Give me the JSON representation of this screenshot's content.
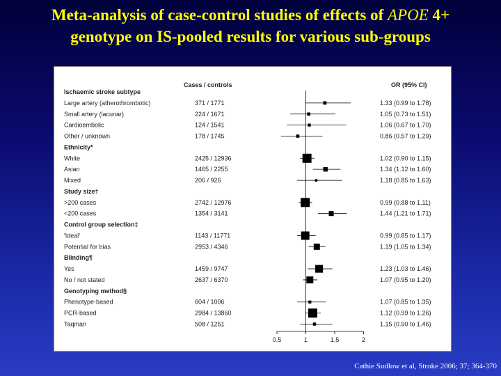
{
  "slide": {
    "title_line1_prefix": "Meta-analysis of case-control studies of effects of ",
    "title_line1_italic": "APOE",
    "title_line1_suffix": " 4+",
    "title_line2": "genotype on IS-pooled results for various sub-groups",
    "citation": "Cathie Sudlow et al, Stroke 2006; 37; 364-370"
  },
  "colors": {
    "title": "#ffff00",
    "marker": "#000000",
    "background_top": "#00003a",
    "background_bottom": "#2a3cc4"
  },
  "chart_data": {
    "type": "forest",
    "column_headers": {
      "cases_controls": "Cases / controls",
      "or": "OR (95% CI)"
    },
    "x_ticks": [
      0.5,
      1,
      1.5,
      2
    ],
    "x_tick_labels": [
      "0.5",
      "1",
      "1.5",
      "2"
    ],
    "xlim": [
      0.5,
      2
    ],
    "reference_line": 1,
    "groups": [
      {
        "header": "Ischaemic stroke subtype",
        "rows": [
          {
            "label": "Large artery (atherothrombotic)",
            "cases_controls": "371 / 1771",
            "or": 1.33,
            "ci": [
              0.99,
              1.78
            ],
            "or_text": "1.33 (0.99 to 1.78)"
          },
          {
            "label": "Small artery (lacunar)",
            "cases_controls": "224 / 1671",
            "or": 1.05,
            "ci": [
              0.73,
              1.51
            ],
            "or_text": "1.05 (0.73 to 1.51)"
          },
          {
            "label": "Cardioembolic",
            "cases_controls": "124 / 1541",
            "or": 1.06,
            "ci": [
              0.67,
              1.7
            ],
            "or_text": "1.06 (0.67 to 1.70)"
          },
          {
            "label": "Other / unknown",
            "cases_controls": "178 / 1745",
            "or": 0.86,
            "ci": [
              0.57,
              1.29
            ],
            "or_text": "0.86 (0.57 to 1.29)"
          }
        ]
      },
      {
        "header": "Ethnicity*",
        "rows": [
          {
            "label": "White",
            "cases_controls": "2425 / 12936",
            "or": 1.02,
            "ci": [
              0.9,
              1.15
            ],
            "or_text": "1.02 (0.90 to 1.15)"
          },
          {
            "label": "Asian",
            "cases_controls": "1465 / 2255",
            "or": 1.34,
            "ci": [
              1.12,
              1.6
            ],
            "or_text": "1.34 (1.12 to 1.60)"
          },
          {
            "label": "Mixed",
            "cases_controls": "206 / 926",
            "or": 1.18,
            "ci": [
              0.85,
              1.63
            ],
            "or_text": "1.18 (0.85 to 1.63)"
          }
        ]
      },
      {
        "header": "Study size†",
        "rows": [
          {
            "label": ">200 cases",
            "cases_controls": "2742 / 12976",
            "or": 0.99,
            "ci": [
              0.88,
              1.11
            ],
            "or_text": "0.99 (0.88 to 1.11)"
          },
          {
            "label": "<200 cases",
            "cases_controls": "1354 / 3141",
            "or": 1.44,
            "ci": [
              1.21,
              1.71
            ],
            "or_text": "1.44 (1.21 to 1.71)"
          }
        ]
      },
      {
        "header": "Control group selection‡",
        "rows": [
          {
            "label": "'Ideal'",
            "cases_controls": "1143 / 11771",
            "or": 0.99,
            "ci": [
              0.85,
              1.17
            ],
            "or_text": "0.99 (0.85 to 1.17)"
          },
          {
            "label": "Potential for bias",
            "cases_controls": "2953 / 4346",
            "or": 1.19,
            "ci": [
              1.05,
              1.34
            ],
            "or_text": "1.19 (1.05 to 1.34)"
          }
        ]
      },
      {
        "header": "Blinding¶",
        "rows": [
          {
            "label": "Yes",
            "cases_controls": "1459 / 9747",
            "or": 1.23,
            "ci": [
              1.03,
              1.46
            ],
            "or_text": "1.23 (1.03 to 1.46)"
          },
          {
            "label": "No / not stated",
            "cases_controls": "2637 / 6370",
            "or": 1.07,
            "ci": [
              0.95,
              1.2
            ],
            "or_text": "1.07 (0.95 to 1.20)"
          }
        ]
      },
      {
        "header": "Genotyping method§",
        "rows": [
          {
            "label": "Phenotype-based",
            "cases_controls": "604 / 1006",
            "or": 1.07,
            "ci": [
              0.85,
              1.35
            ],
            "or_text": "1.07 (0.85 to 1.35)"
          },
          {
            "label": "PCR-based",
            "cases_controls": "2984 / 13860",
            "or": 1.12,
            "ci": [
              0.99,
              1.26
            ],
            "or_text": "1.12 (0.99 to 1.26)"
          },
          {
            "label": "Taqman",
            "cases_controls": "508 / 1251",
            "or": 1.15,
            "ci": [
              0.9,
              1.46
            ],
            "or_text": "1.15 (0.90 to 1.46)"
          }
        ]
      }
    ]
  }
}
